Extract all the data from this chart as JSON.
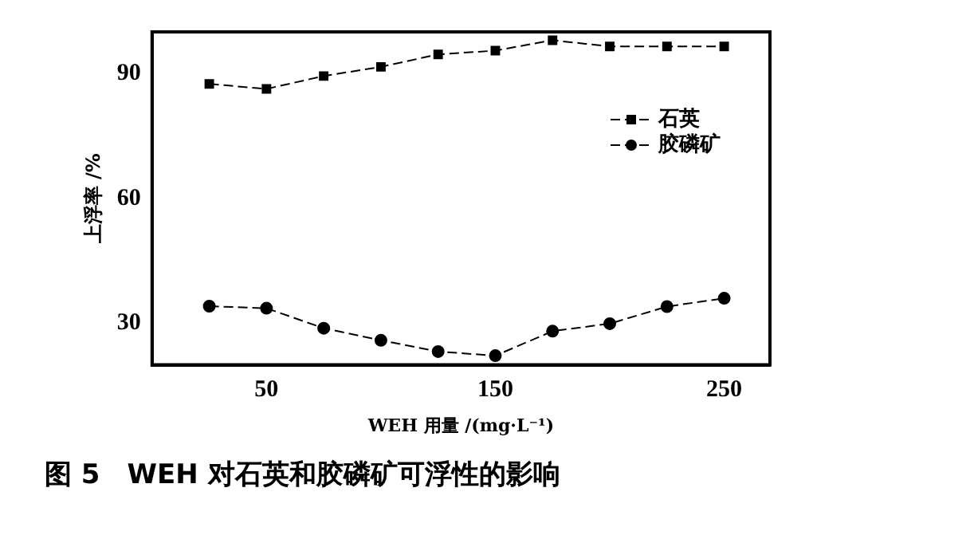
{
  "chart_data": {
    "type": "line",
    "title": "图 5　WEH 对石英和胶磷矿可浮性的影响",
    "xlabel": "WEH 用量 /(mg·L⁻¹)",
    "ylabel": "上浮率 /%",
    "x": [
      25,
      50,
      75,
      100,
      125,
      150,
      175,
      200,
      225,
      250
    ],
    "series": [
      {
        "name": "石英",
        "color": "#000000",
        "marker": "square",
        "values": [
          87.5,
          86.3,
          89.4,
          91.6,
          94.6,
          95.5,
          98,
          96.5,
          96.5,
          96.5
        ]
      },
      {
        "name": "胶磷矿",
        "color": "#000000",
        "marker": "circle",
        "values": [
          34.1,
          33.6,
          28.8,
          25.9,
          23.2,
          22.2,
          28.1,
          29.9,
          34,
          36
        ]
      }
    ],
    "xlim": [
      0,
      270
    ],
    "xticks": [
      50,
      150,
      250
    ],
    "ylim": [
      20,
      100
    ],
    "yticks": [
      30,
      60,
      90
    ],
    "grid": false,
    "legend": "top right",
    "line_style": "dashed"
  }
}
